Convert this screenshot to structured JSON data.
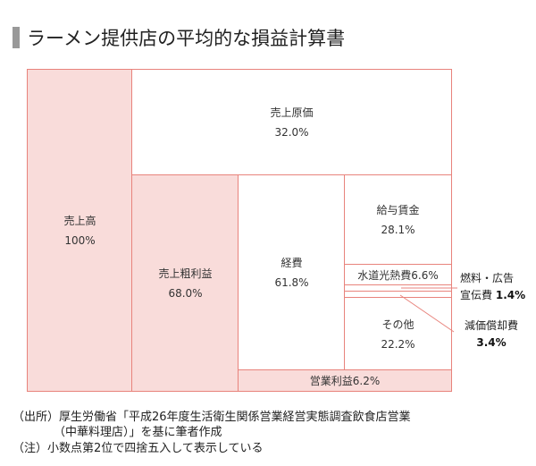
{
  "title": "ラーメン提供店の平均的な損益計算書",
  "blocks": {
    "sales": {
      "label": "売上高",
      "value": "100%"
    },
    "cogs": {
      "label": "売上原価",
      "value": "32.0%"
    },
    "gross": {
      "label": "売上粗利益",
      "value": "68.0%"
    },
    "expenses": {
      "label": "経費",
      "value": "61.8%"
    },
    "wages": {
      "label": "給与賃金",
      "value": "28.1%"
    },
    "utilities": {
      "label": "水道光熱費6.6%"
    },
    "other": {
      "label": "その他",
      "value": "22.2%"
    },
    "operating": {
      "label": "営業利益6.2%"
    }
  },
  "callouts": {
    "fuel_ad": {
      "label1": "燃料・広告",
      "label2": "宣伝費",
      "value": "1.4%"
    },
    "depreciation": {
      "label": "減価償却費",
      "value": "3.4%"
    }
  },
  "notes": {
    "source1": "（出所）厚生労働省「平成26年度生活衛生関係営業経営実態調査飲食店営業",
    "source2": "（中華料理店）」を基に筆者作成",
    "note": "（注）小数点第2位で四捨五入して表示している"
  },
  "colors": {
    "border": "#e8837c",
    "fill": "#f9dcda"
  }
}
